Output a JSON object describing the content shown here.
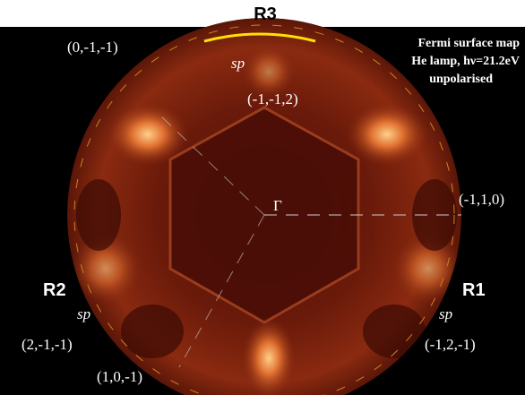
{
  "header": {
    "title": "R3"
  },
  "legend": {
    "line1": "Fermi surface map",
    "line2": "He lamp, hν=21.2eV",
    "line3": "unpolarised"
  },
  "labels": {
    "top_left": "(0,-1,-1)",
    "top_sp": "sp",
    "top_inner": "(-1,-1,2)",
    "center": "Γ",
    "right": "(-1,1,0)",
    "left_region": "R2",
    "right_region": "R1",
    "left_sp": "sp",
    "right_sp": "sp",
    "bottom_left": "(2,-1,-1)",
    "bottom_right": "(-1,2,-1)",
    "bottom": "(1,0,-1)"
  }
}
